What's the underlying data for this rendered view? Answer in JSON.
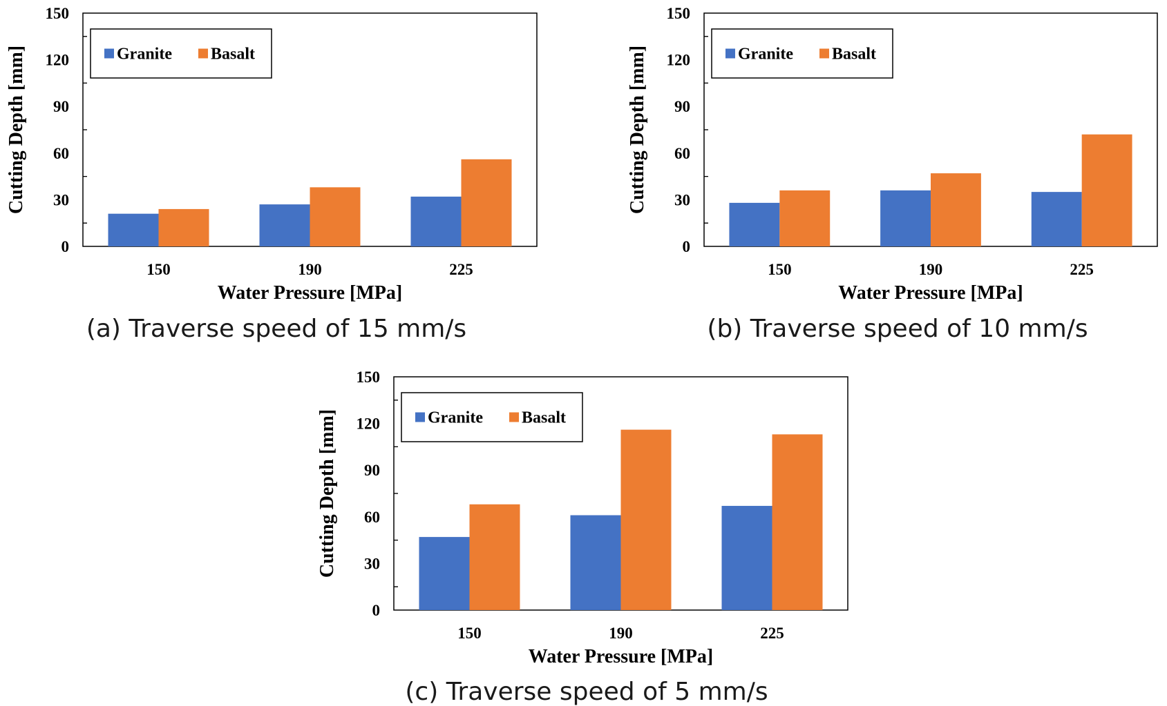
{
  "chart_data": [
    {
      "type": "bar",
      "caption": "(a) Traverse speed of 15 mm/s",
      "categories": [
        "150",
        "190",
        "225"
      ],
      "series": [
        {
          "name": "Granite",
          "values": [
            21,
            27,
            32
          ]
        },
        {
          "name": "Basalt",
          "values": [
            24,
            38,
            56
          ]
        }
      ],
      "xlabel": "Water Pressure [MPa]",
      "ylabel": "Cutting Depth [mm]",
      "ylim": [
        0,
        150
      ],
      "yticks": [
        0,
        30,
        60,
        90,
        120,
        150
      ],
      "grid": false,
      "legend_position": "top-left"
    },
    {
      "type": "bar",
      "caption": "(b) Traverse speed of 10 mm/s",
      "categories": [
        "150",
        "190",
        "225"
      ],
      "series": [
        {
          "name": "Granite",
          "values": [
            28,
            36,
            35
          ]
        },
        {
          "name": "Basalt",
          "values": [
            36,
            47,
            72
          ]
        }
      ],
      "xlabel": "Water Pressure [MPa]",
      "ylabel": "Cutting Depth [mm]",
      "ylim": [
        0,
        150
      ],
      "yticks": [
        0,
        30,
        60,
        90,
        120,
        150
      ],
      "grid": false,
      "legend_position": "top-left"
    },
    {
      "type": "bar",
      "caption": "(c) Traverse speed of 5 mm/s",
      "categories": [
        "150",
        "190",
        "225"
      ],
      "series": [
        {
          "name": "Granite",
          "values": [
            47,
            61,
            67
          ]
        },
        {
          "name": "Basalt",
          "values": [
            68,
            116,
            113
          ]
        }
      ],
      "xlabel": "Water Pressure [MPa]",
      "ylabel": "Cutting Depth [mm]",
      "ylim": [
        0,
        150
      ],
      "yticks": [
        0,
        30,
        60,
        90,
        120,
        150
      ],
      "grid": false,
      "legend_position": "top-left"
    }
  ],
  "colors": {
    "granite": "#4472C4",
    "basalt": "#ED7D31"
  }
}
